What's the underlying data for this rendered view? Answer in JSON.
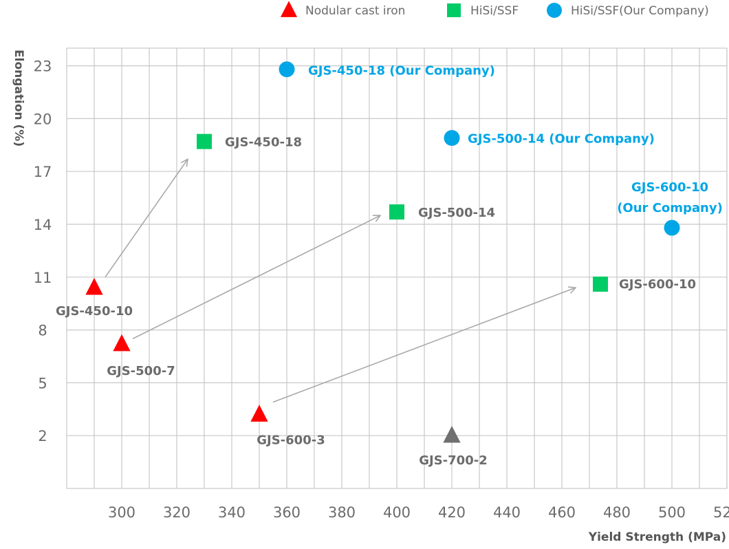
{
  "chart_data": {
    "type": "scatter",
    "xlabel": "Yield Strength (MPa)",
    "ylabel": "Elongation (%)",
    "x_ticks": [
      300,
      320,
      340,
      360,
      380,
      400,
      420,
      440,
      460,
      480,
      500,
      520
    ],
    "y_ticks": [
      2,
      5,
      8,
      11,
      14,
      17,
      20,
      23
    ],
    "xlim": [
      280,
      520
    ],
    "ylim": [
      -1,
      24
    ],
    "grid": true,
    "legend_position": "top-right",
    "colors": {
      "nodular": "#ff0000",
      "hisi": "#00cc66",
      "ourco": "#00a6e6",
      "gray": "#707070",
      "grid": "#c8c8c8",
      "arrow": "#a8a8a8",
      "label_gray": "#6b6b6b"
    },
    "series": [
      {
        "name": "Nodular cast iron",
        "marker": "triangle",
        "color": "#ff0000",
        "points": [
          {
            "x": 290,
            "y": 10.4,
            "label": "GJS-450-10"
          },
          {
            "x": 300,
            "y": 7.2,
            "label": "GJS-500-7"
          },
          {
            "x": 350,
            "y": 3.2,
            "label": "GJS-600-3"
          }
        ]
      },
      {
        "name": "HiSi/SSF",
        "marker": "square",
        "color": "#00cc66",
        "points": [
          {
            "x": 330,
            "y": 18.7,
            "label": "GJS-450-18"
          },
          {
            "x": 400,
            "y": 14.7,
            "label": "GJS-500-14"
          },
          {
            "x": 474,
            "y": 10.6,
            "label": "GJS-600-10"
          }
        ]
      },
      {
        "name": "HiSi/SSF(Our Company)",
        "marker": "circle",
        "color": "#00a6e6",
        "points": [
          {
            "x": 360,
            "y": 22.8,
            "label": "GJS-450-18 (Our Company)"
          },
          {
            "x": 420,
            "y": 18.9,
            "label": "GJS-500-14 (Our Company)"
          },
          {
            "x": 500,
            "y": 13.8,
            "label": "GJS-600-10 (Our Company)"
          }
        ]
      },
      {
        "marker": "triangle",
        "color": "#707070",
        "points": [
          {
            "x": 420,
            "y": 2.0,
            "label": "GJS-700-2"
          }
        ]
      }
    ],
    "arrows": [
      {
        "from": [
          294,
          11.0
        ],
        "to": [
          324,
          17.7
        ]
      },
      {
        "from": [
          304,
          7.5
        ],
        "to": [
          394,
          14.5
        ]
      },
      {
        "from": [
          355,
          3.9
        ],
        "to": [
          465,
          10.4
        ]
      }
    ]
  }
}
